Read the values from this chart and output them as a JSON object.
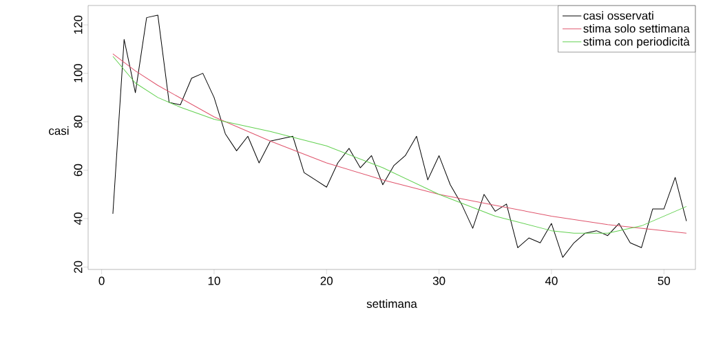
{
  "chart_data": {
    "type": "line",
    "xlabel": "settimana",
    "ylabel": "casi",
    "xlim": [
      -1.2,
      52.8
    ],
    "ylim": [
      19,
      128
    ],
    "xticks": [
      0,
      10,
      20,
      30,
      40,
      50
    ],
    "yticks": [
      20,
      40,
      60,
      80,
      100,
      120
    ],
    "legend": "top right",
    "grid": false,
    "marker": "none",
    "line_style": "solid",
    "series": [
      {
        "name": "casi osservati",
        "color": "#000000",
        "x": [
          1,
          2,
          3,
          4,
          5,
          6,
          7,
          8,
          9,
          10,
          11,
          12,
          13,
          14,
          15,
          16,
          17,
          18,
          19,
          20,
          21,
          22,
          23,
          24,
          25,
          26,
          27,
          28,
          29,
          30,
          31,
          32,
          33,
          34,
          35,
          36,
          37,
          38,
          39,
          40,
          41,
          42,
          43,
          44,
          45,
          46,
          47,
          48,
          49,
          50,
          51,
          52
        ],
        "values": [
          42,
          114,
          92,
          123,
          124,
          88,
          87,
          98,
          100,
          90,
          75,
          68,
          74,
          63,
          72,
          73,
          74,
          59,
          56,
          53,
          63,
          69,
          61,
          66,
          54,
          62,
          66,
          74,
          56,
          66,
          54,
          46,
          36,
          50,
          43,
          46,
          28,
          32,
          30,
          38,
          24,
          30,
          34,
          35,
          33,
          38,
          30,
          28,
          44,
          44,
          57,
          39
        ]
      },
      {
        "name": "stima solo settimana",
        "color": "#df536b",
        "x": [
          1,
          3,
          5,
          10,
          15,
          20,
          25,
          30,
          35,
          40,
          45,
          52
        ],
        "values": [
          108,
          101,
          95,
          82,
          72,
          63,
          56,
          50,
          45.5,
          41,
          37.5,
          34
        ]
      },
      {
        "name": "stima con periodicità",
        "color": "#61d04f",
        "x": [
          1,
          3,
          5,
          7,
          10,
          15,
          20,
          25,
          30,
          35,
          40,
          42,
          45,
          48,
          52
        ],
        "values": [
          107,
          96,
          90,
          86,
          81,
          76,
          70,
          61,
          50,
          41,
          35,
          34,
          34,
          37,
          45
        ]
      }
    ]
  }
}
